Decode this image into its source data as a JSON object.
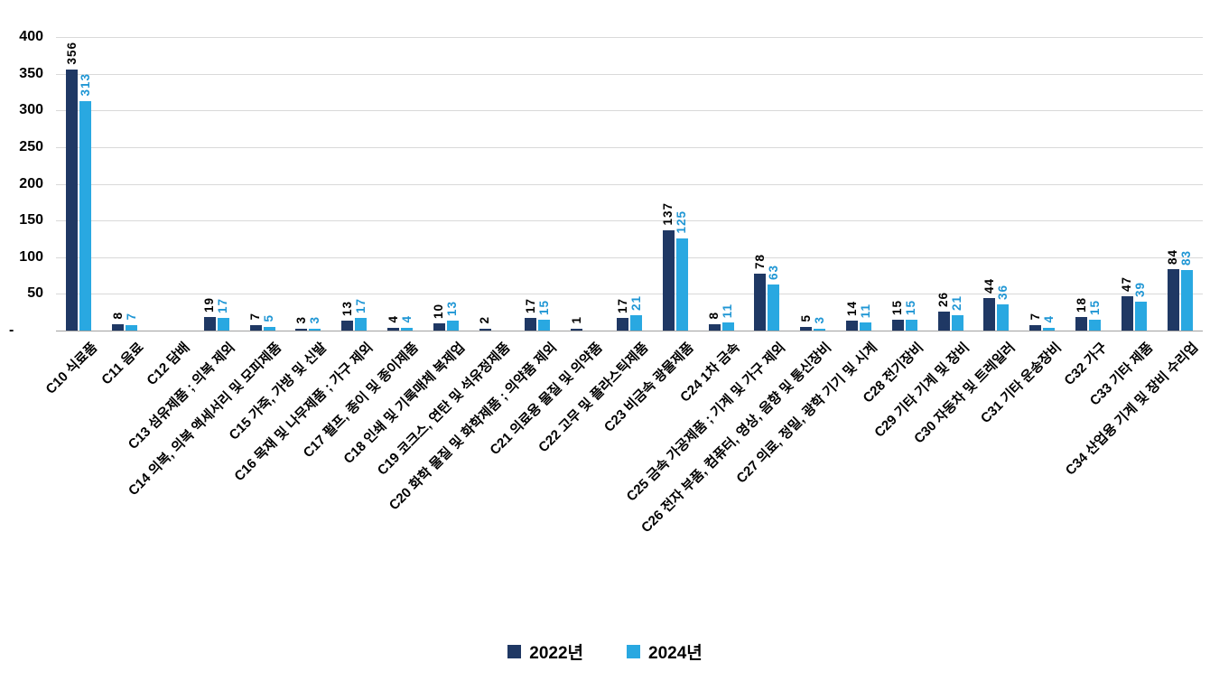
{
  "chart_data": {
    "type": "bar",
    "title": "",
    "xlabel": "",
    "ylabel": "",
    "ylim": [
      0,
      400
    ],
    "grid": true,
    "legend_position": "bottom",
    "y_ticks": [
      "400",
      "350",
      "300",
      "250",
      "200",
      "150",
      "100",
      "50",
      "-"
    ],
    "categories": [
      "C10 식료품",
      "C11 음료",
      "C12 담배",
      "C13 섬유제품 ; 의복 제외",
      "C14 의복, 의복 액세서리 및 모피제품",
      "C15 가죽, 가방 및 신발",
      "C16 목재 및 나무제품 ; 가구 제외",
      "C17 펄프, 종이 및 종이제품",
      "C18 인쇄 및 기록매체 복제업",
      "C19 코크스, 연탄 및 석유정제품",
      "C20 화학 물질 및 화학제품 ; 의약품 제외",
      "C21 의료용 물질 및 의약품",
      "C22 고무 및 플라스틱제품",
      "C23 비금속 광물제품",
      "C24 1차 금속",
      "C25 금속 가공제품 ; 기계 및 가구 제외",
      "C26 전자 부품, 컴퓨터, 영상, 음향 및 통신장비",
      "C27 의료, 정밀, 광학 기기 및 시계",
      "C28 전기장비",
      "C29 기타 기계 및 장비",
      "C30 자동차 및 트레일러",
      "C31 기타 운송장비",
      "C32 가구",
      "C33 기타 제품",
      "C34 산업용 기계 및 장비 수리업"
    ],
    "series": [
      {
        "name": "2022년",
        "color": "#1F3864",
        "label_color": "#000000",
        "values": [
          356,
          8,
          null,
          19,
          7,
          3,
          13,
          4,
          10,
          2,
          17,
          1,
          17,
          137,
          8,
          78,
          5,
          14,
          15,
          26,
          44,
          7,
          18,
          47,
          84
        ]
      },
      {
        "name": "2024년",
        "color": "#29A8E1",
        "label_color": "#1F96D4",
        "values": [
          313,
          7,
          null,
          17,
          5,
          3,
          17,
          4,
          13,
          null,
          15,
          null,
          21,
          125,
          11,
          63,
          3,
          11,
          15,
          21,
          36,
          4,
          15,
          39,
          83
        ]
      }
    ]
  }
}
